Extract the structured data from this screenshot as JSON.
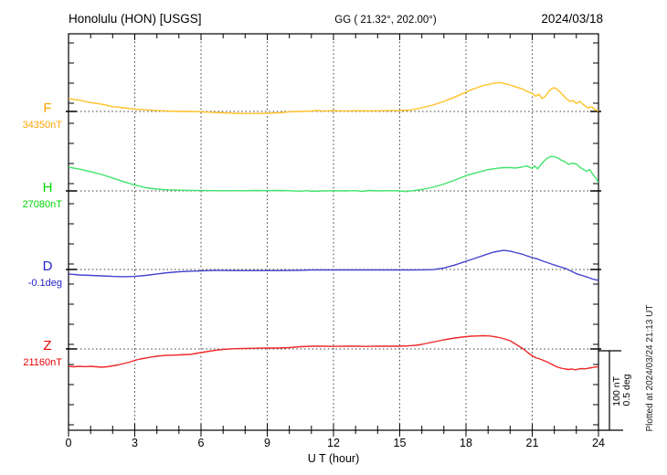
{
  "header": {
    "station": "Honolulu (HON)  [USGS]",
    "coords": "GG ( 21.32°, 202.00°)",
    "date": "2024/03/18"
  },
  "scale_bar": {
    "line1": "100 nT",
    "line2": "0.5 deg"
  },
  "footer_note": "Plotted at 2024/03/24 21:13 UT",
  "colors": {
    "axis": "#000000",
    "grid_dots": "#3a3a3a",
    "F_label": "#ffa500",
    "F_line": "#ffc125",
    "H_label": "#00d800",
    "H_line": "#41e36b",
    "D_label": "#2222cc",
    "D_line": "#4343cf",
    "Z_label": "#e80000",
    "Z_line": "#ef2929"
  },
  "chart_data": {
    "type": "line",
    "title": "Honolulu (HON)  [USGS]",
    "subtitle": "GG ( 21.32°, 202.00°)",
    "date": "2024/03/18",
    "xlabel": "U T (hour)",
    "x_range": [
      0,
      24
    ],
    "x_ticks": [
      0,
      3,
      6,
      9,
      12,
      15,
      18,
      21,
      24
    ],
    "grid": "dotted vertical lines every 3 hours, dotted horizontal baseline per trace",
    "legend_position": "left margin labels",
    "scale_division": "100 nT = 0.5 deg per scale bar",
    "series": [
      {
        "name": "F",
        "unit": "nT",
        "baseline_value": 34350,
        "baseline_label": "34350nT",
        "label_color": "#ffa500",
        "line_color": "#ffc125",
        "points_are": "[hour UT, offset from baseline in nT]",
        "points": [
          [
            0,
            16
          ],
          [
            0.25,
            15
          ],
          [
            0.5,
            14
          ],
          [
            0.75,
            12.5
          ],
          [
            1,
            11
          ],
          [
            1.5,
            9
          ],
          [
            2,
            6
          ],
          [
            2.5,
            4.5
          ],
          [
            3,
            3
          ],
          [
            3.5,
            2
          ],
          [
            4,
            1
          ],
          [
            4.5,
            0.5
          ],
          [
            5,
            0
          ],
          [
            5.5,
            0
          ],
          [
            6,
            -0.5
          ],
          [
            6.5,
            -1
          ],
          [
            7,
            -1.7
          ],
          [
            7.5,
            -2.3
          ],
          [
            8,
            -2.5
          ],
          [
            8.5,
            -2.5
          ],
          [
            9,
            -2.3
          ],
          [
            9.5,
            -1.7
          ],
          [
            10,
            -0.5
          ],
          [
            10.5,
            0
          ],
          [
            11,
            0.5
          ],
          [
            11.25,
            1.1
          ],
          [
            11.5,
            0.5
          ],
          [
            12,
            0.9
          ],
          [
            12.5,
            0.5
          ],
          [
            13,
            0.9
          ],
          [
            13.5,
            0.6
          ],
          [
            14,
            0.8
          ],
          [
            14.5,
            1
          ],
          [
            15,
            1.1
          ],
          [
            15.5,
            1.7
          ],
          [
            16,
            4.5
          ],
          [
            16.5,
            8
          ],
          [
            17,
            12.5
          ],
          [
            17.5,
            18
          ],
          [
            18,
            24
          ],
          [
            18.25,
            27
          ],
          [
            18.5,
            29.5
          ],
          [
            18.75,
            32
          ],
          [
            19,
            33.5
          ],
          [
            19.25,
            35
          ],
          [
            19.5,
            36
          ],
          [
            19.75,
            34.5
          ],
          [
            20,
            33
          ],
          [
            20.25,
            30.5
          ],
          [
            20.5,
            28.5
          ],
          [
            20.75,
            25
          ],
          [
            21,
            22.5
          ],
          [
            21.15,
            19
          ],
          [
            21.3,
            21.5
          ],
          [
            21.45,
            16
          ],
          [
            21.6,
            19
          ],
          [
            21.75,
            25
          ],
          [
            21.9,
            28.5
          ],
          [
            22,
            29.5
          ],
          [
            22.15,
            27
          ],
          [
            22.3,
            23
          ],
          [
            22.5,
            17
          ],
          [
            22.7,
            12.5
          ],
          [
            22.85,
            13.5
          ],
          [
            23,
            10
          ],
          [
            23.15,
            12.5
          ],
          [
            23.3,
            9
          ],
          [
            23.5,
            4.5
          ],
          [
            23.7,
            5.5
          ],
          [
            23.85,
            2
          ],
          [
            24,
            0.5
          ]
        ]
      },
      {
        "name": "H",
        "unit": "nT",
        "baseline_value": 27080,
        "baseline_label": "27080nT",
        "label_color": "#00d800",
        "line_color": "#41e36b",
        "points_are": "[hour UT, offset from baseline in nT]",
        "points": [
          [
            0,
            29.5
          ],
          [
            0.5,
            27
          ],
          [
            1,
            24
          ],
          [
            1.5,
            20.5
          ],
          [
            2,
            16
          ],
          [
            2.5,
            11.5
          ],
          [
            3,
            7.5
          ],
          [
            3.5,
            4
          ],
          [
            4,
            2.3
          ],
          [
            4.5,
            1.4
          ],
          [
            5,
            0.9
          ],
          [
            5.5,
            0.6
          ],
          [
            6,
            0.4
          ],
          [
            6.5,
            0.3
          ],
          [
            7,
            0.2
          ],
          [
            7.5,
            0.3
          ],
          [
            8,
            0.2
          ],
          [
            8.5,
            0.6
          ],
          [
            9,
            0.3
          ],
          [
            9.5,
            0.6
          ],
          [
            10,
            0.2
          ],
          [
            10.5,
            -0.3
          ],
          [
            10.8,
            0.3
          ],
          [
            11,
            -0.6
          ],
          [
            11.5,
            0
          ],
          [
            12,
            0.2
          ],
          [
            12.5,
            0
          ],
          [
            13,
            0.3
          ],
          [
            13.3,
            -0.6
          ],
          [
            13.6,
            0.6
          ],
          [
            14,
            0
          ],
          [
            14.5,
            0.3
          ],
          [
            15,
            0
          ],
          [
            15.3,
            -0.8
          ],
          [
            15.6,
            0.3
          ],
          [
            16,
            1.7
          ],
          [
            16.5,
            4.5
          ],
          [
            17,
            8.5
          ],
          [
            17.5,
            13.5
          ],
          [
            18,
            19
          ],
          [
            18.5,
            23
          ],
          [
            19,
            26.5
          ],
          [
            19.5,
            28.5
          ],
          [
            19.75,
            29
          ],
          [
            20,
            29
          ],
          [
            20.25,
            28.5
          ],
          [
            20.5,
            29.5
          ],
          [
            20.75,
            31
          ],
          [
            21,
            28
          ],
          [
            21.1,
            31
          ],
          [
            21.25,
            27.5
          ],
          [
            21.4,
            33
          ],
          [
            21.55,
            37.5
          ],
          [
            21.7,
            41
          ],
          [
            21.85,
            43
          ],
          [
            22,
            42.5
          ],
          [
            22.15,
            41
          ],
          [
            22.3,
            38.5
          ],
          [
            22.5,
            36
          ],
          [
            22.65,
            33
          ],
          [
            22.8,
            34.5
          ],
          [
            23,
            33.5
          ],
          [
            23.15,
            29.5
          ],
          [
            23.3,
            27
          ],
          [
            23.45,
            24.5
          ],
          [
            23.6,
            26.5
          ],
          [
            23.75,
            20.5
          ],
          [
            23.9,
            15
          ],
          [
            24,
            10
          ]
        ]
      },
      {
        "name": "D",
        "unit": "deg",
        "baseline_value": -0.1,
        "baseline_label": "-0.1deg",
        "label_color": "#2222cc",
        "line_color": "#4343cf",
        "points_are": "[hour UT, offset from baseline in degrees]",
        "points": [
          [
            0,
            -0.028
          ],
          [
            0.5,
            -0.034
          ],
          [
            1,
            -0.037
          ],
          [
            1.5,
            -0.04
          ],
          [
            2,
            -0.043
          ],
          [
            2.5,
            -0.045
          ],
          [
            3,
            -0.043
          ],
          [
            3.5,
            -0.037
          ],
          [
            4,
            -0.028
          ],
          [
            4.5,
            -0.02
          ],
          [
            5,
            -0.014
          ],
          [
            5.5,
            -0.011
          ],
          [
            6,
            -0.009
          ],
          [
            6.5,
            -0.006
          ],
          [
            7,
            -0.006
          ],
          [
            7.5,
            -0.007
          ],
          [
            8,
            -0.007
          ],
          [
            8.5,
            -0.007
          ],
          [
            9,
            -0.007
          ],
          [
            9.5,
            -0.007
          ],
          [
            10,
            -0.006
          ],
          [
            10.5,
            -0.005
          ],
          [
            11,
            -0.003
          ],
          [
            11.5,
            -0.003
          ],
          [
            12,
            -0.003
          ],
          [
            12.5,
            -0.003
          ],
          [
            13,
            -0.003
          ],
          [
            13.5,
            -0.003
          ],
          [
            14,
            -0.003
          ],
          [
            14.5,
            -0.003
          ],
          [
            15,
            -0.003
          ],
          [
            15.5,
            -0.003
          ],
          [
            16,
            -0.002
          ],
          [
            16.5,
            -0.001
          ],
          [
            17,
            0.009
          ],
          [
            17.5,
            0.028
          ],
          [
            18,
            0.051
          ],
          [
            18.5,
            0.074
          ],
          [
            19,
            0.097
          ],
          [
            19.25,
            0.108
          ],
          [
            19.5,
            0.114
          ],
          [
            19.7,
            0.119
          ],
          [
            20,
            0.114
          ],
          [
            20.25,
            0.105
          ],
          [
            20.5,
            0.097
          ],
          [
            20.75,
            0.085
          ],
          [
            21,
            0.074
          ],
          [
            21.25,
            0.065
          ],
          [
            21.5,
            0.051
          ],
          [
            21.75,
            0.04
          ],
          [
            22,
            0.028
          ],
          [
            22.25,
            0.017
          ],
          [
            22.5,
            0.006
          ],
          [
            22.75,
            -0.009
          ],
          [
            23,
            -0.026
          ],
          [
            23.25,
            -0.037
          ],
          [
            23.5,
            -0.048
          ],
          [
            23.75,
            -0.06
          ],
          [
            24,
            -0.068
          ]
        ]
      },
      {
        "name": "Z",
        "unit": "nT",
        "baseline_value": 21160,
        "baseline_label": "21160nT",
        "label_color": "#e80000",
        "line_color": "#ef2929",
        "points_are": "[hour UT, offset from baseline in nT]",
        "points": [
          [
            0,
            -21.6
          ],
          [
            0.25,
            -22.2
          ],
          [
            0.5,
            -21.6
          ],
          [
            0.75,
            -22
          ],
          [
            1,
            -21.6
          ],
          [
            1.25,
            -22.2
          ],
          [
            1.5,
            -22.7
          ],
          [
            1.75,
            -22.2
          ],
          [
            2,
            -21
          ],
          [
            2.25,
            -19.9
          ],
          [
            2.5,
            -18.2
          ],
          [
            2.75,
            -16.5
          ],
          [
            3,
            -14.2
          ],
          [
            3.25,
            -12.5
          ],
          [
            3.5,
            -11.4
          ],
          [
            3.75,
            -10
          ],
          [
            4,
            -9.1
          ],
          [
            4.25,
            -8.3
          ],
          [
            4.5,
            -8
          ],
          [
            4.75,
            -7.7
          ],
          [
            5,
            -7.4
          ],
          [
            5.5,
            -6.8
          ],
          [
            5.75,
            -5.7
          ],
          [
            6,
            -4.5
          ],
          [
            6.25,
            -3.4
          ],
          [
            6.5,
            -2.3
          ],
          [
            6.75,
            -1.4
          ],
          [
            7,
            -0.6
          ],
          [
            7.5,
            0.3
          ],
          [
            8,
            0.6
          ],
          [
            8.5,
            0.9
          ],
          [
            9,
            1.1
          ],
          [
            9.5,
            1.1
          ],
          [
            10,
            1.7
          ],
          [
            10.5,
            2.8
          ],
          [
            11,
            3.4
          ],
          [
            11.5,
            3.4
          ],
          [
            12,
            3.2
          ],
          [
            12.5,
            3.4
          ],
          [
            13,
            3.4
          ],
          [
            13.5,
            3.2
          ],
          [
            14,
            3.4
          ],
          [
            14.5,
            3.4
          ],
          [
            15,
            3.4
          ],
          [
            15.5,
            4.1
          ],
          [
            15.75,
            4.5
          ],
          [
            16,
            5.7
          ],
          [
            16.5,
            8.5
          ],
          [
            17,
            11.4
          ],
          [
            17.5,
            13.6
          ],
          [
            18,
            15.3
          ],
          [
            18.25,
            15.9
          ],
          [
            18.5,
            16.1
          ],
          [
            18.75,
            16.5
          ],
          [
            19,
            16.2
          ],
          [
            19.2,
            15.7
          ],
          [
            19.4,
            14.8
          ],
          [
            19.6,
            13.6
          ],
          [
            19.8,
            11.9
          ],
          [
            20,
            10.2
          ],
          [
            20.2,
            6.8
          ],
          [
            20.4,
            3.4
          ],
          [
            20.6,
            0
          ],
          [
            20.8,
            -4.5
          ],
          [
            21,
            -8.5
          ],
          [
            21.2,
            -11.4
          ],
          [
            21.35,
            -12.5
          ],
          [
            21.5,
            -14.2
          ],
          [
            21.7,
            -16.5
          ],
          [
            21.9,
            -19.3
          ],
          [
            22.1,
            -22.2
          ],
          [
            22.3,
            -23.9
          ],
          [
            22.5,
            -25
          ],
          [
            22.65,
            -25.6
          ],
          [
            22.8,
            -25
          ],
          [
            22.95,
            -25.9
          ],
          [
            23.1,
            -25
          ],
          [
            23.25,
            -24.4
          ],
          [
            23.4,
            -24.8
          ],
          [
            23.55,
            -23.9
          ],
          [
            23.7,
            -23.3
          ],
          [
            23.85,
            -22.5
          ],
          [
            24,
            -22.2
          ]
        ]
      }
    ]
  }
}
